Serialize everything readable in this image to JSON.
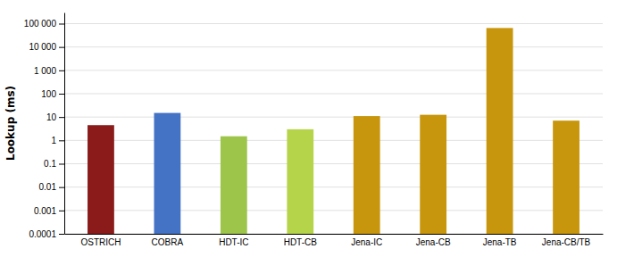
{
  "chart_data": {
    "type": "bar",
    "categories": [
      "OSTRICH",
      "COBRA",
      "HDT-IC",
      "HDT-CB",
      "Jena-IC",
      "Jena-CB",
      "Jena-TB",
      "Jena-CB/TB"
    ],
    "values": [
      4.5,
      15.0,
      1.5,
      3.0,
      11.0,
      12.5,
      65000.0,
      7.0
    ],
    "colors": [
      "#8B1A1A",
      "#4472C4",
      "#9DC54A",
      "#B5D44A",
      "#C8960C",
      "#C8960C",
      "#C8960C",
      "#C8960C"
    ],
    "y_label": "Lookup (ms)",
    "log": "y",
    "ylim": [
      0.0001,
      300000
    ],
    "yticks": [
      0.0001,
      0.001,
      0.01,
      0.1,
      1,
      10,
      100,
      {
        "value": 1000,
        "label": "1 000"
      },
      {
        "value": 10000,
        "label": "10 000"
      },
      {
        "value": 100000,
        "label": "100 000"
      }
    ],
    "grid": true
  }
}
